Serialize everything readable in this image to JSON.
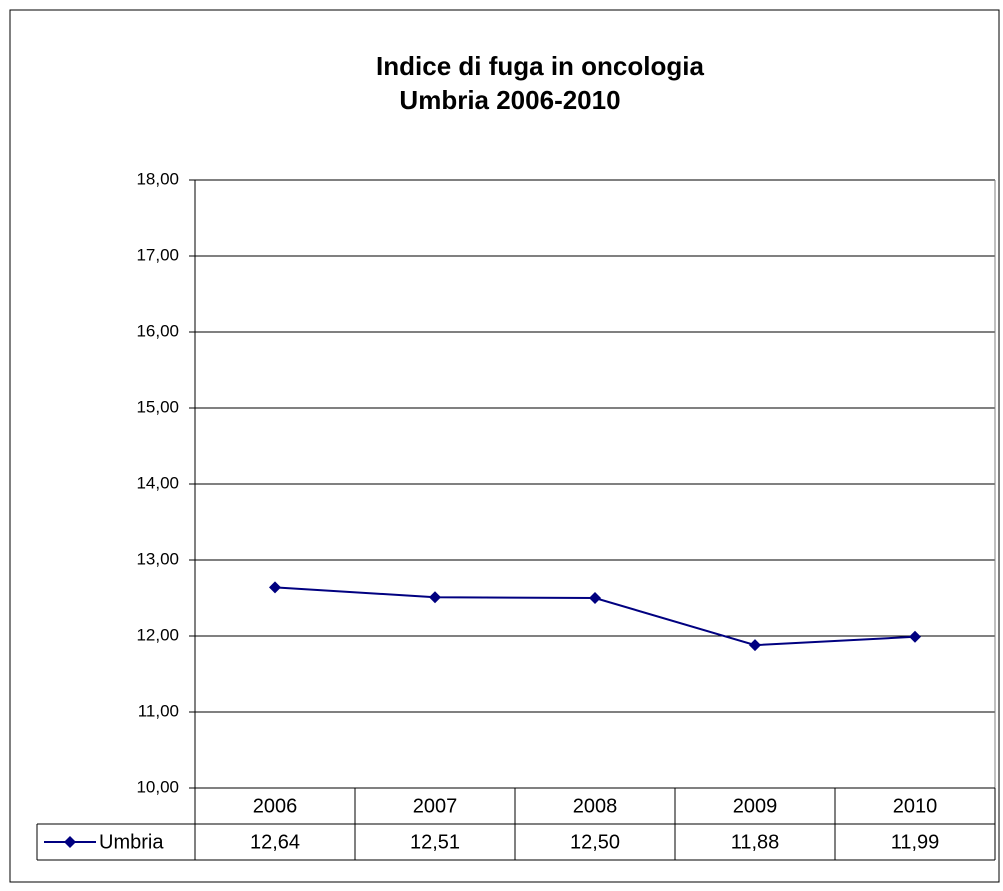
{
  "chart_data": {
    "type": "line",
    "title": "Indice di fuga in oncologia",
    "subtitle": "Umbria 2006-2010",
    "categories": [
      "2006",
      "2007",
      "2008",
      "2009",
      "2010"
    ],
    "series": [
      {
        "name": "Umbria",
        "color": "#000080",
        "values": [
          12.64,
          12.51,
          12.5,
          11.88,
          11.99
        ],
        "value_labels": [
          "12,64",
          "12,51",
          "12,50",
          "11,88",
          "11,99"
        ]
      }
    ],
    "ylim": [
      10,
      18
    ],
    "yticks": [
      {
        "value": 10,
        "label": "10,00"
      },
      {
        "value": 11,
        "label": "11,00"
      },
      {
        "value": 12,
        "label": "12,00"
      },
      {
        "value": 13,
        "label": "13,00"
      },
      {
        "value": 14,
        "label": "14,00"
      },
      {
        "value": 15,
        "label": "15,00"
      },
      {
        "value": 16,
        "label": "16,00"
      },
      {
        "value": 17,
        "label": "17,00"
      },
      {
        "value": 18,
        "label": "18,00"
      }
    ],
    "grid": true
  }
}
